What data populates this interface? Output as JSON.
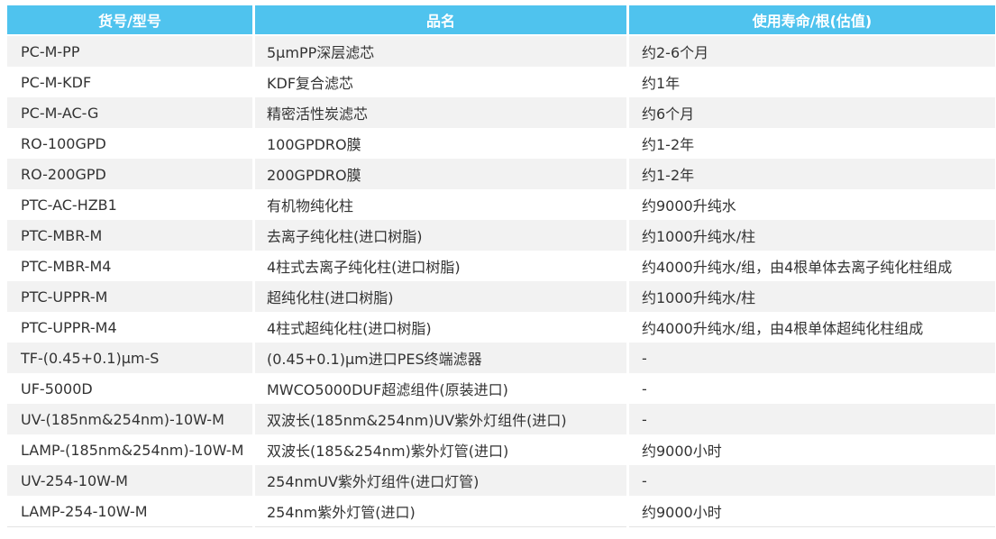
{
  "table": {
    "headers": [
      "货号/型号",
      "品名",
      "使用寿命/根(估值)"
    ],
    "rows": [
      [
        "PC-M-PP",
        "5μmPP深层滤芯",
        "约2-6个月"
      ],
      [
        "PC-M-KDF",
        "KDF复合滤芯",
        "约1年"
      ],
      [
        "PC-M-AC-G",
        "精密活性炭滤芯",
        "约6个月"
      ],
      [
        "RO-100GPD",
        "100GPDRO膜",
        "约1-2年"
      ],
      [
        "RO-200GPD",
        "200GPDRO膜",
        "约1-2年"
      ],
      [
        "PTC-AC-HZB1",
        "有机物纯化柱",
        "约9000升纯水"
      ],
      [
        "PTC-MBR-M",
        "去离子纯化柱(进口树脂)",
        "约1000升纯水/柱"
      ],
      [
        "PTC-MBR-M4",
        "4柱式去离子纯化柱(进口树脂)",
        "约4000升纯水/组，由4根单体去离子纯化柱组成"
      ],
      [
        "PTC-UPPR-M",
        "超纯化柱(进口树脂)",
        "约1000升纯水/柱"
      ],
      [
        "PTC-UPPR-M4",
        "4柱式超纯化柱(进口树脂)",
        "约4000升纯水/组，由4根单体超纯化柱组成"
      ],
      [
        "TF-(0.45+0.1)μm-S",
        "(0.45+0.1)μm进口PES终端滤器",
        "-"
      ],
      [
        "UF-5000D",
        "MWCO5000DUF超滤组件(原装进口)",
        "-"
      ],
      [
        "UV-(185nm&254nm)-10W-M",
        "双波长(185nm&254nm)UV紫外灯组件(进口)",
        "-"
      ],
      [
        "LAMP-(185nm&254nm)-10W-M",
        "双波长(185&254nm)紫外灯管(进口)",
        "约9000小时"
      ],
      [
        "UV-254-10W-M",
        "254nmUV紫外灯组件(进口灯管)",
        "-"
      ],
      [
        "LAMP-254-10W-M",
        "254nm紫外灯管(进口)",
        "约9000小时"
      ]
    ]
  },
  "colors": {
    "header_bg": "#4fc3ee",
    "header_text": "#ffffff",
    "row_stripe": "#f2f2f2",
    "row_plain": "#ffffff",
    "cell_text": "#333333"
  }
}
